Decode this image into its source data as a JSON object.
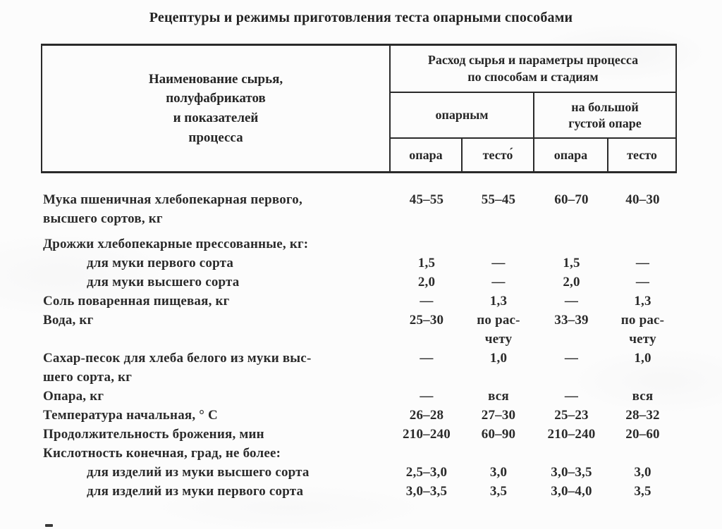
{
  "page": {
    "title": "Рецептуры и режимы приготовления теста опарными способами"
  },
  "colors": {
    "ink": "#2b2b2b",
    "paper": "#fcfcfc",
    "border": "#2a2a2a"
  },
  "table": {
    "header": {
      "col1": "Наименование сырья,\nполуфабрикатов\nи показателей\nпроцесса",
      "span": "Расход сырья и параметры процесса\nпо способам и стадиям",
      "group1": "опарным",
      "group2": "на большой\nгустой опаре",
      "subcols": [
        "опара",
        "тесто́",
        "опара",
        "тесто"
      ]
    },
    "rows": [
      {
        "label": "Мука пшеничная хлебопекарная первого,\nвысшего сортов, кг",
        "values": [
          "45–55",
          "55–45",
          "60–70",
          "40–30"
        ]
      },
      {
        "label": "Дрожжи хлебопекарные прессованные, кг:",
        "values": [
          "",
          "",
          "",
          ""
        ]
      },
      {
        "label": "для муки первого сорта",
        "values": [
          "1,5",
          "—",
          "1,5",
          "—"
        ]
      },
      {
        "label": "для муки высшего сорта",
        "values": [
          "2,0",
          "—",
          "2,0",
          "—"
        ]
      },
      {
        "label": "Соль поваренная пищевая, кг",
        "values": [
          "—",
          "1,3",
          "—",
          "1,3"
        ]
      },
      {
        "label": "Вода, кг",
        "values": [
          "25–30",
          "по рас-\nчету",
          "33–39",
          "по рас-\nчету"
        ]
      },
      {
        "label": "Сахар-песок для хлеба белого из муки выс-\nшего сорта, кг",
        "values": [
          "—",
          "1,0",
          "—",
          "1,0"
        ]
      },
      {
        "label": "Опара, кг",
        "values": [
          "—",
          "вся",
          "—",
          "вся"
        ]
      },
      {
        "label": "Температура начальная, ° С",
        "values": [
          "26–28",
          "27–30",
          "25–23",
          "28–32"
        ]
      },
      {
        "label": "Продолжительность брожения, мин",
        "values": [
          "210–240",
          "60–90",
          "210–240",
          "20–60"
        ]
      },
      {
        "label": "Кислотность конечная, град, не более:",
        "values": [
          "",
          "",
          "",
          ""
        ]
      },
      {
        "label": "для изделий из муки высшего сорта",
        "values": [
          "2,5–3,0",
          "3,0",
          "3,0–3,5",
          "3,0"
        ]
      },
      {
        "label": "для изделий из муки первого сорта",
        "values": [
          "3,0–3,5",
          "3,5",
          "3,0–4,0",
          "3,5"
        ]
      }
    ]
  }
}
